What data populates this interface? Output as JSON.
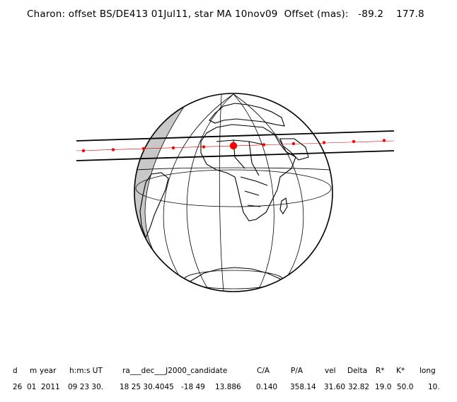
{
  "title": "Charon: offset BS/DE413 01Jul11, star MA 10nov09  Offset (mas):   -89.2    177.8",
  "table": {
    "headers": [
      "d",
      "m",
      "year",
      "h:m:s UT",
      "ra___dec___J2000_candidate",
      "C/A",
      "P/A",
      "vel",
      "Delta",
      "R*",
      "K*",
      "long"
    ],
    "values": [
      "26",
      "01",
      "2011",
      "09 23 30.",
      "18 25 30.4045",
      "-18 49",
      "13.886",
      "0.140",
      "358.14",
      "31.60",
      "32.82",
      "19.0",
      "50.0",
      "10."
    ]
  },
  "map": {
    "projection": "orthographic",
    "colors": {
      "outline": "#000000",
      "night_shade": "#c8c8c8",
      "track_points": "#ff0000"
    },
    "track_points_count": 11,
    "closest_approach_marker": "large red dot"
  }
}
